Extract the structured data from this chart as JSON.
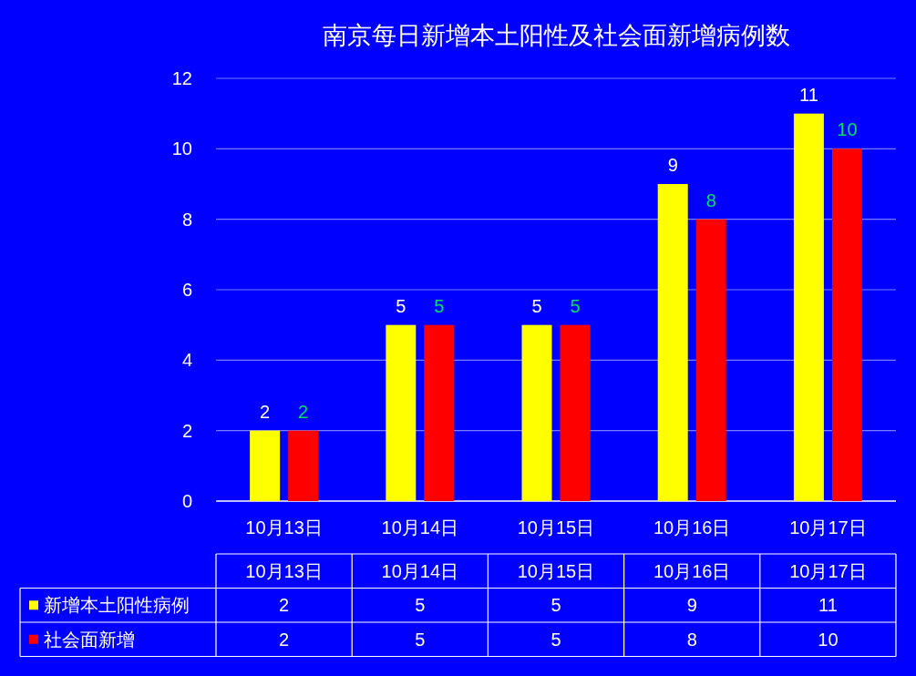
{
  "chart_data": {
    "type": "bar",
    "title": "南京每日新增本土阳性及社会面新增病例数",
    "categories": [
      "10月13日",
      "10月14日",
      "10月15日",
      "10月16日",
      "10月17日"
    ],
    "series": [
      {
        "name": "新增本土阳性病例",
        "color": "#ffff00",
        "values": [
          2,
          5,
          5,
          9,
          11
        ],
        "value_labels": [
          "2",
          "5",
          "5",
          "9",
          "11"
        ]
      },
      {
        "name": "社会面新增",
        "color": "#ff0000",
        "values": [
          2,
          5,
          5,
          8,
          10
        ],
        "value_labels": [
          "2",
          "5",
          "5",
          "8",
          "10"
        ]
      }
    ],
    "ylim": [
      0,
      12
    ],
    "yticks": [
      0,
      2,
      4,
      6,
      8,
      10,
      12
    ],
    "grid": "y",
    "legend": "bottom",
    "annotations": [
      "2",
      "5",
      "5",
      "9",
      "11",
      "2",
      "5",
      "5",
      "8",
      "10"
    ]
  }
}
